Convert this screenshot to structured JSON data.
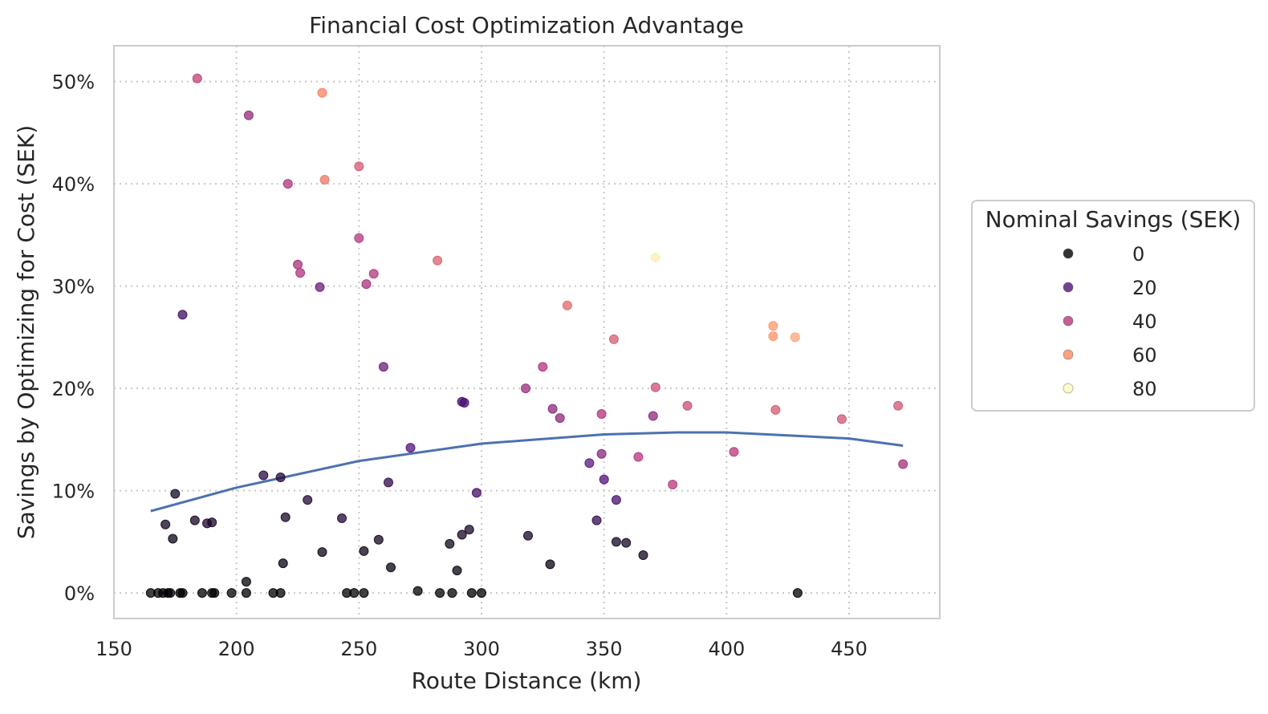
{
  "chart_data": {
    "type": "scatter",
    "title": "Financial Cost Optimization Advantage",
    "xlabel": "Route Distance (km)",
    "ylabel": "Savings by Optimizing for Cost (SEK)",
    "xlim": [
      150,
      487
    ],
    "ylim": [
      -2.5,
      53.5
    ],
    "x_ticks": [
      150,
      200,
      250,
      300,
      350,
      400,
      450
    ],
    "y_ticks": [
      0,
      10,
      20,
      30,
      40,
      50
    ],
    "y_tick_format": "percent",
    "grid": true,
    "color_map": "magma",
    "legend": {
      "title": "Nominal Savings (SEK)",
      "placement": "right",
      "entries": [
        {
          "label": "0",
          "value": 0,
          "color": "#000004"
        },
        {
          "label": "20",
          "value": 20,
          "color": "#51127c"
        },
        {
          "label": "40",
          "value": 40,
          "color": "#b73779"
        },
        {
          "label": "60",
          "value": 60,
          "color": "#fc8961"
        },
        {
          "label": "80",
          "value": 80,
          "color": "#fcfdbf"
        }
      ]
    },
    "trend_line": {
      "color": "#4c72b0",
      "points": [
        [
          165,
          8.0
        ],
        [
          200,
          10.3
        ],
        [
          250,
          12.9
        ],
        [
          300,
          14.6
        ],
        [
          350,
          15.5
        ],
        [
          380,
          15.7
        ],
        [
          400,
          15.7
        ],
        [
          450,
          15.1
        ],
        [
          472,
          14.4
        ]
      ]
    },
    "points": [
      [
        184,
        50.3,
        42
      ],
      [
        205,
        46.7,
        33
      ],
      [
        221,
        40.0,
        38
      ],
      [
        225,
        32.1,
        36
      ],
      [
        226,
        31.3,
        38
      ],
      [
        234,
        29.9,
        25
      ],
      [
        235,
        48.9,
        58
      ],
      [
        236,
        40.4,
        55
      ],
      [
        250,
        41.7,
        48
      ],
      [
        250,
        34.7,
        40
      ],
      [
        253,
        30.2,
        37
      ],
      [
        256,
        31.2,
        39
      ],
      [
        260,
        22.1,
        25
      ],
      [
        271,
        14.2,
        20
      ],
      [
        282,
        32.5,
        50
      ],
      [
        292,
        18.7,
        17
      ],
      [
        293,
        18.6,
        18
      ],
      [
        298,
        9.8,
        16
      ],
      [
        318,
        20.0,
        34
      ],
      [
        325,
        22.1,
        38
      ],
      [
        329,
        18.0,
        31
      ],
      [
        332,
        17.1,
        32
      ],
      [
        335,
        28.1,
        52
      ],
      [
        344,
        12.7,
        22
      ],
      [
        349,
        17.5,
        38
      ],
      [
        349,
        13.6,
        30
      ],
      [
        350,
        11.1,
        20
      ],
      [
        354,
        24.8,
        49
      ],
      [
        355,
        9.1,
        17
      ],
      [
        364,
        13.3,
        40
      ],
      [
        370,
        17.3,
        32
      ],
      [
        371,
        20.1,
        46
      ],
      [
        371,
        32.8,
        82
      ],
      [
        378,
        10.6,
        40
      ],
      [
        384,
        18.3,
        45
      ],
      [
        403,
        13.8,
        40
      ],
      [
        419,
        26.1,
        63
      ],
      [
        419,
        25.1,
        62
      ],
      [
        420,
        17.9,
        48
      ],
      [
        428,
        25.0,
        66
      ],
      [
        447,
        17.0,
        47
      ],
      [
        470,
        18.3,
        47
      ],
      [
        472,
        12.6,
        36
      ],
      [
        178,
        27.2,
        15
      ],
      [
        211,
        11.5,
        10
      ],
      [
        218,
        11.3,
        9
      ],
      [
        262,
        10.8,
        12
      ],
      [
        175,
        9.7,
        5
      ],
      [
        171,
        6.7,
        4
      ],
      [
        174,
        5.3,
        3
      ],
      [
        183,
        7.1,
        5
      ],
      [
        188,
        6.8,
        7
      ],
      [
        190,
        6.9,
        6
      ],
      [
        204,
        1.1,
        1
      ],
      [
        220,
        7.4,
        6
      ],
      [
        219,
        2.9,
        2
      ],
      [
        229,
        9.1,
        8
      ],
      [
        235,
        4.0,
        3
      ],
      [
        243,
        7.3,
        8
      ],
      [
        252,
        4.1,
        3
      ],
      [
        258,
        5.2,
        4
      ],
      [
        263,
        2.5,
        2
      ],
      [
        274,
        0.2,
        0
      ],
      [
        287,
        4.8,
        4
      ],
      [
        290,
        2.2,
        2
      ],
      [
        292,
        5.7,
        5
      ],
      [
        295,
        6.2,
        6
      ],
      [
        319,
        5.6,
        6
      ],
      [
        328,
        2.8,
        2
      ],
      [
        347,
        7.1,
        12
      ],
      [
        355,
        5.0,
        5
      ],
      [
        359,
        4.9,
        5
      ],
      [
        366,
        3.7,
        4
      ],
      [
        429,
        0.0,
        0
      ],
      [
        165,
        0.0,
        0
      ],
      [
        168,
        0.0,
        0
      ],
      [
        170,
        0.0,
        0
      ],
      [
        172,
        0.0,
        0
      ],
      [
        173,
        0.0,
        0
      ],
      [
        177,
        0.0,
        0
      ],
      [
        178,
        0.0,
        0
      ],
      [
        186,
        0.0,
        0
      ],
      [
        190,
        0.0,
        0
      ],
      [
        191,
        0.0,
        0
      ],
      [
        198,
        0.0,
        0
      ],
      [
        204,
        0.0,
        0
      ],
      [
        215,
        0.0,
        0
      ],
      [
        218,
        0.0,
        0
      ],
      [
        245,
        0.0,
        0
      ],
      [
        248,
        0.0,
        0
      ],
      [
        252,
        0.0,
        0
      ],
      [
        283,
        0.0,
        0
      ],
      [
        288,
        0.0,
        0
      ],
      [
        296,
        0.0,
        0
      ],
      [
        300,
        0.0,
        0
      ]
    ]
  }
}
